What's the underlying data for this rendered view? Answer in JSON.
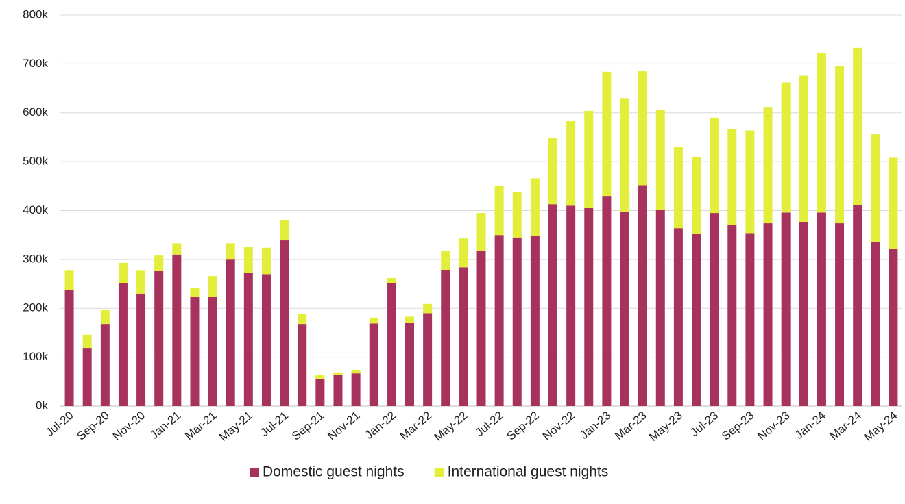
{
  "chart_data": {
    "type": "stacked_bar",
    "categories": [
      "Jul-20",
      null,
      "Sep-20",
      null,
      "Nov-20",
      null,
      "Jan-21",
      null,
      "Mar-21",
      null,
      "May-21",
      null,
      "Jul-21",
      null,
      "Sep-21",
      null,
      "Nov-21",
      null,
      "Jan-22",
      null,
      "Mar-22",
      null,
      "May-22",
      null,
      "Jul-22",
      null,
      "Sep-22",
      null,
      "Nov-22",
      null,
      "Jan-23",
      null,
      "Mar-23",
      null,
      "May-23",
      null,
      "Jul-23",
      null,
      "Sep-23",
      null,
      "Nov-23",
      null,
      "Jan-24",
      null,
      "Mar-24",
      null,
      "May-24"
    ],
    "series": [
      {
        "name": "Domestic guest nights",
        "color": "#a8325e",
        "values": [
          238000,
          119000,
          168000,
          252000,
          230000,
          276000,
          310000,
          223000,
          224000,
          301000,
          273000,
          270000,
          339000,
          168000,
          56000,
          64000,
          67000,
          169000,
          251000,
          171000,
          190000,
          279000,
          284000,
          318000,
          350000,
          345000,
          349000,
          413000,
          410000,
          405000,
          430000,
          398000,
          452000,
          402000,
          364000,
          353000,
          395000,
          371000,
          354000,
          374000,
          396000,
          377000,
          396000,
          374000,
          412000,
          336000,
          321000
        ]
      },
      {
        "name": "International guest nights",
        "color": "#e2ee3a",
        "values": [
          39000,
          27000,
          29000,
          41000,
          47000,
          32000,
          23000,
          18000,
          42000,
          32000,
          53000,
          54000,
          42000,
          20000,
          8000,
          5000,
          6000,
          12000,
          11000,
          12000,
          19000,
          38000,
          59000,
          77000,
          100000,
          93000,
          117000,
          135000,
          174000,
          199000,
          254000,
          232000,
          233000,
          204000,
          167000,
          157000,
          195000,
          195000,
          210000,
          238000,
          266000,
          299000,
          327000,
          321000,
          321000,
          220000,
          187000
        ]
      }
    ],
    "ylim": [
      0,
      800000
    ],
    "yticks": [
      {
        "value": 0,
        "label": "0k"
      },
      {
        "value": 100000,
        "label": "100k"
      },
      {
        "value": 200000,
        "label": "200k"
      },
      {
        "value": 300000,
        "label": "300k"
      },
      {
        "value": 400000,
        "label": "400k"
      },
      {
        "value": 500000,
        "label": "500k"
      },
      {
        "value": 600000,
        "label": "600k"
      },
      {
        "value": 700000,
        "label": "700k"
      },
      {
        "value": 800000,
        "label": "800k"
      }
    ],
    "grid": true,
    "legend": "bottom"
  }
}
